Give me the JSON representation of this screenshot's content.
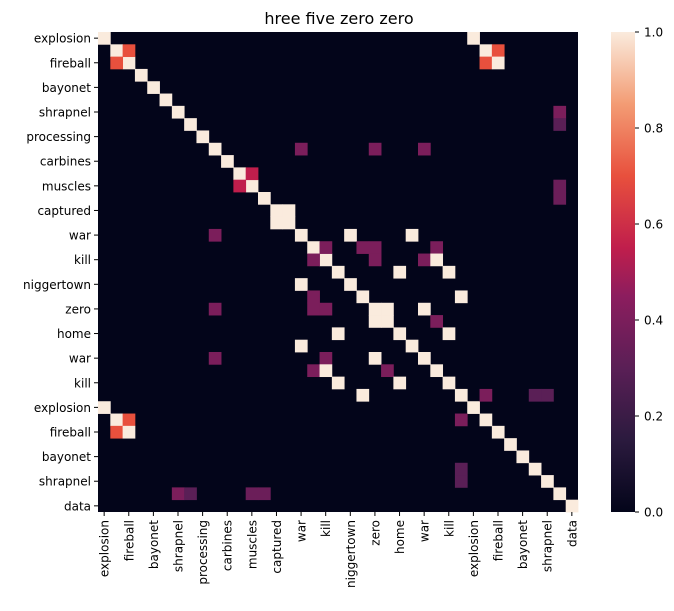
{
  "chart_data": {
    "type": "heatmap",
    "title": "hree five zero zero",
    "xlabel": "",
    "ylabel": "",
    "n": 39,
    "tick_labels": [
      "explosion",
      "fireball",
      "bayonet",
      "shrapnel",
      "processing",
      "carbines",
      "muscles",
      "captured",
      "war",
      "kill",
      "niggertown",
      "zero",
      "home",
      "war",
      "kill",
      "explosion",
      "fireball",
      "bayonet",
      "shrapnel",
      "data"
    ],
    "colorbar": {
      "min": 0.0,
      "max": 1.0,
      "ticks": [
        0.0,
        0.2,
        0.4,
        0.6,
        0.8,
        1.0
      ],
      "tick_labels": [
        "0.0",
        "0.2",
        "0.4",
        "0.6",
        "0.8",
        "1.0"
      ]
    },
    "diagonal_value": 1.0,
    "offdiag_cells": [
      [
        0,
        30,
        1.0
      ],
      [
        1,
        2,
        0.7
      ],
      [
        1,
        31,
        1.0
      ],
      [
        1,
        32,
        0.7
      ],
      [
        2,
        31,
        0.7
      ],
      [
        2,
        32,
        1.0
      ],
      [
        6,
        37,
        0.4
      ],
      [
        7,
        37,
        0.3
      ],
      [
        9,
        16,
        0.4
      ],
      [
        9,
        22,
        0.4
      ],
      [
        9,
        26,
        0.4
      ],
      [
        11,
        12,
        0.55
      ],
      [
        12,
        37,
        0.35
      ],
      [
        13,
        37,
        0.35
      ],
      [
        14,
        15,
        1.0
      ],
      [
        16,
        20,
        1.0
      ],
      [
        16,
        25,
        1.0
      ],
      [
        17,
        18,
        0.4
      ],
      [
        17,
        21,
        0.4
      ],
      [
        17,
        22,
        0.4
      ],
      [
        17,
        27,
        0.4
      ],
      [
        18,
        22,
        0.4
      ],
      [
        18,
        26,
        0.4
      ],
      [
        18,
        27,
        1.0
      ],
      [
        19,
        24,
        1.0
      ],
      [
        19,
        28,
        1.0
      ],
      [
        21,
        29,
        1.0
      ],
      [
        22,
        23,
        1.0
      ],
      [
        22,
        26,
        1.0
      ],
      [
        23,
        27,
        0.4
      ],
      [
        24,
        28,
        1.0
      ],
      [
        29,
        31,
        0.4
      ],
      [
        29,
        35,
        0.3
      ],
      [
        29,
        36,
        0.3
      ]
    ]
  }
}
